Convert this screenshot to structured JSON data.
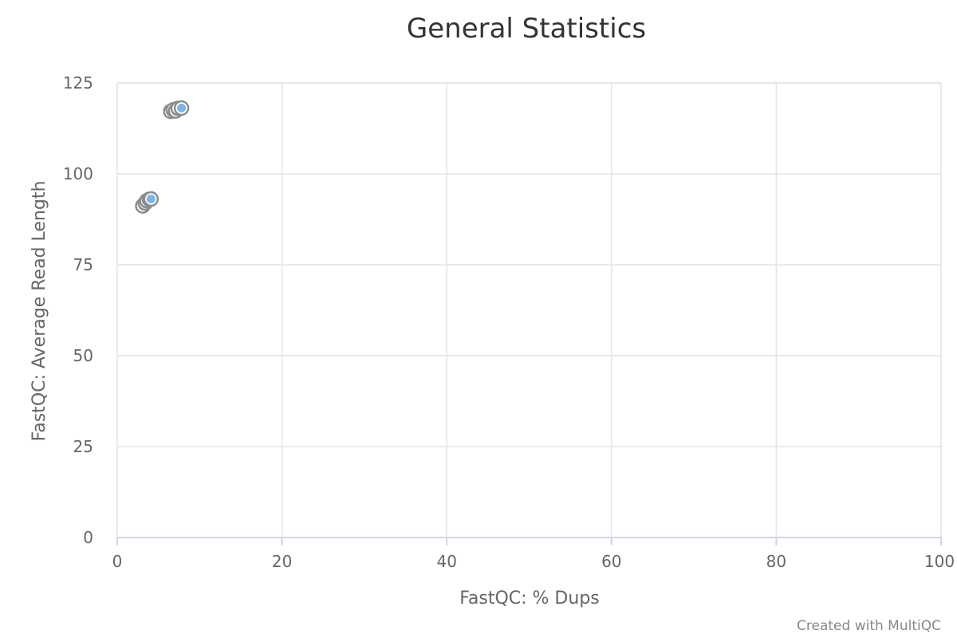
{
  "chart_data": {
    "type": "scatter",
    "title": "General Statistics",
    "xlabel": "FastQC: % Dups",
    "ylabel": "FastQC: Average Read Length",
    "xlim": [
      0,
      100
    ],
    "ylim": [
      0,
      125
    ],
    "xticks": [
      0,
      20,
      40,
      60,
      80,
      100
    ],
    "yticks": [
      0,
      25,
      50,
      75,
      100,
      125
    ],
    "grid": true,
    "series": [
      {
        "name": "Samples",
        "points": [
          {
            "x": 3.1,
            "y": 91.2
          },
          {
            "x": 3.4,
            "y": 92.0
          },
          {
            "x": 3.6,
            "y": 92.6
          },
          {
            "x": 3.9,
            "y": 93.0
          },
          {
            "x": 4.1,
            "y": 93.1
          },
          {
            "x": 6.5,
            "y": 117.2
          },
          {
            "x": 6.8,
            "y": 117.6
          },
          {
            "x": 7.1,
            "y": 117.3
          },
          {
            "x": 7.4,
            "y": 118.0
          },
          {
            "x": 7.8,
            "y": 118.1
          }
        ]
      }
    ],
    "colors": {
      "fill": "#7cb5ec",
      "stroke": "#8c8c8c"
    }
  },
  "credits": "Created with MultiQC"
}
